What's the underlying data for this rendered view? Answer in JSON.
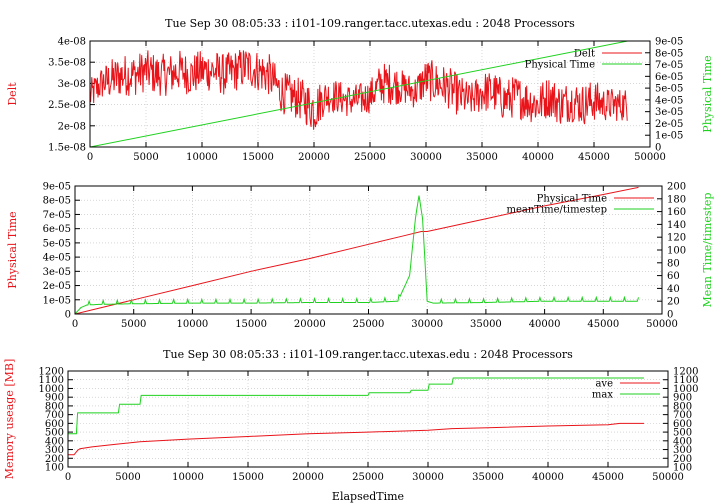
{
  "colors": {
    "red": "#e8141a",
    "green": "#1fd21f",
    "axis": "#000000",
    "grid": "#bfbfbf"
  },
  "chart_data": [
    {
      "type": "line",
      "title": "Tue Sep 30 08:05:33 : i101-109.ranger.tacc.utexas.edu : 2048 Processors",
      "ylabel": "Delt",
      "y2label": "Physical Time",
      "xlim": [
        0,
        50000
      ],
      "ylim": [
        1.5e-08,
        4e-08
      ],
      "y2lim": [
        0,
        9e-05
      ],
      "xticks": [
        "0",
        "5000",
        "10000",
        "15000",
        "20000",
        "25000",
        "30000",
        "35000",
        "40000",
        "45000",
        "50000"
      ],
      "yticks": [
        "1.5e-08",
        "2e-08",
        "2.5e-08",
        "3e-08",
        "3.5e-08",
        "4e-08"
      ],
      "y2ticks": [
        "0",
        "1e-05",
        "2e-05",
        "3e-05",
        "4e-05",
        "5e-05",
        "6e-05",
        "7e-05",
        "8e-05",
        "9e-05"
      ],
      "legend_position": "top-right",
      "grid": true,
      "series": [
        {
          "name": "Delt",
          "axis": "left",
          "color": "#e8141a",
          "x": [
            0,
            1000,
            2000,
            3000,
            4000,
            5000,
            6000,
            7000,
            8000,
            9000,
            10000,
            11000,
            12000,
            13000,
            14000,
            15000,
            16000,
            17000,
            18000,
            19000,
            20000,
            21000,
            22000,
            23000,
            24000,
            25000,
            26000,
            27000,
            28000,
            29000,
            30000,
            31000,
            32000,
            33000,
            34000,
            35000,
            36000,
            37000,
            38000,
            39000,
            40000,
            41000,
            42000,
            43000,
            44000,
            45000,
            46000,
            47000,
            48000
          ],
          "y": [
            2.7e-08,
            3e-08,
            3.1e-08,
            3.2e-08,
            3.2e-08,
            3.3e-08,
            3.2e-08,
            3.2e-08,
            3.3e-08,
            3.2e-08,
            3.3e-08,
            3.3e-08,
            3.2e-08,
            3.3e-08,
            3.4e-08,
            3.3e-08,
            3.2e-08,
            2.8e-08,
            2.7e-08,
            2.6e-08,
            2.4e-08,
            2.7e-08,
            2.7e-08,
            2.6e-08,
            2.6e-08,
            2.7e-08,
            3e-08,
            3e-08,
            2.9e-08,
            2.8e-08,
            3.1e-08,
            3e-08,
            2.9e-08,
            2.7e-08,
            2.6e-08,
            2.8e-08,
            2.8e-08,
            2.6e-08,
            2.7e-08,
            2.6e-08,
            2.5e-08,
            2.7e-08,
            2.5e-08,
            2.6e-08,
            2.5e-08,
            2.6e-08,
            2.5e-08,
            2.5e-08,
            2.5e-08
          ],
          "spread": [
            4e-09,
            4e-09,
            5e-09,
            5e-09,
            5e-09,
            5e-09,
            5e-09,
            5e-09,
            5e-09,
            5e-09,
            5e-09,
            5e-09,
            5e-09,
            5e-09,
            5e-09,
            5e-09,
            5e-09,
            5e-09,
            5e-09,
            5e-09,
            6e-09,
            4e-09,
            4e-09,
            4e-09,
            4e-09,
            4e-09,
            5e-09,
            5e-09,
            4e-09,
            4e-09,
            5e-09,
            5e-09,
            5e-09,
            5e-09,
            4e-09,
            5e-09,
            5e-09,
            5e-09,
            5e-09,
            5e-09,
            5e-09,
            5e-09,
            5e-09,
            5e-09,
            5e-09,
            5e-09,
            4e-09,
            4e-09,
            4e-09
          ]
        },
        {
          "name": "Physical Time",
          "axis": "right",
          "color": "#1fd21f",
          "x": [
            0,
            48000
          ],
          "y": [
            0,
            9e-05
          ]
        }
      ]
    },
    {
      "type": "line",
      "title": "",
      "ylabel": "Physical Time",
      "y2label": "Mean Time/timestep",
      "xlim": [
        0,
        50000
      ],
      "ylim": [
        0,
        9e-05
      ],
      "y2lim": [
        0,
        200
      ],
      "xticks": [
        "0",
        "5000",
        "10000",
        "15000",
        "20000",
        "25000",
        "30000",
        "35000",
        "40000",
        "45000",
        "50000"
      ],
      "yticks": [
        "0",
        "1e-05",
        "2e-05",
        "3e-05",
        "4e-05",
        "5e-05",
        "6e-05",
        "7e-05",
        "8e-05",
        "9e-05"
      ],
      "y2ticks": [
        "0",
        "20",
        "40",
        "60",
        "80",
        "100",
        "120",
        "140",
        "160",
        "180",
        "200"
      ],
      "legend_position": "top-right",
      "grid": true,
      "series": [
        {
          "name": "Physical Time",
          "axis": "left",
          "color": "#e8141a",
          "x": [
            0,
            5000,
            10000,
            15000,
            20000,
            25000,
            28000,
            29500,
            30000,
            35000,
            40000,
            45000,
            48000
          ],
          "y": [
            0,
            1e-05,
            2e-05,
            3e-05,
            3.9e-05,
            4.9e-05,
            5.5e-05,
            5.8e-05,
            5.8e-05,
            6.7e-05,
            7.6e-05,
            8.4e-05,
            8.9e-05
          ]
        },
        {
          "name": "meanTime/timestep",
          "axis": "right",
          "color": "#1fd21f",
          "x": [
            0,
            500,
            1000,
            2000,
            5000,
            10000,
            15000,
            20000,
            25000,
            27500,
            28500,
            29000,
            29300,
            29600,
            30000,
            30500,
            35000,
            40000,
            45000,
            48000
          ],
          "y": [
            0,
            10,
            14,
            15,
            16,
            17,
            17,
            18,
            18,
            20,
            60,
            150,
            185,
            150,
            20,
            17,
            18,
            20,
            20,
            20
          ],
          "spike_interval": 1200
        }
      ]
    },
    {
      "type": "line",
      "title": "Tue Sep 30 08:05:33 : i101-109.ranger.tacc.utexas.edu : 2048 Processors",
      "xlabel": "ElapsedTime",
      "ylabel": "Memory useage [MB]",
      "xlim": [
        0,
        50000
      ],
      "ylim": [
        100,
        1200
      ],
      "y2lim": [
        100,
        1200
      ],
      "xticks": [
        "0",
        "5000",
        "10000",
        "15000",
        "20000",
        "25000",
        "30000",
        "35000",
        "40000",
        "45000",
        "50000"
      ],
      "yticks": [
        "100",
        "200",
        "300",
        "400",
        "500",
        "600",
        "700",
        "800",
        "900",
        "1000",
        "1100",
        "1200"
      ],
      "y2ticks": [
        "100",
        "200",
        "300",
        "400",
        "500",
        "600",
        "700",
        "800",
        "900",
        "1000",
        "1100",
        "1200"
      ],
      "legend_position": "top-right",
      "grid": true,
      "series": [
        {
          "name": "ave",
          "color": "#e8141a",
          "x": [
            0,
            500,
            800,
            1000,
            2000,
            4000,
            6000,
            10000,
            15000,
            20000,
            25000,
            30000,
            32000,
            35000,
            40000,
            45000,
            46000,
            48000
          ],
          "y": [
            240,
            240,
            290,
            310,
            330,
            360,
            390,
            420,
            450,
            480,
            500,
            520,
            540,
            550,
            570,
            585,
            600,
            600
          ]
        },
        {
          "name": "max",
          "color": "#1fd21f",
          "x": [
            0,
            700,
            800,
            4200,
            4300,
            6000,
            6100,
            25000,
            25100,
            28500,
            28600,
            30000,
            30100,
            32000,
            32100,
            48000
          ],
          "y": [
            480,
            480,
            720,
            720,
            820,
            820,
            920,
            920,
            950,
            950,
            980,
            980,
            1050,
            1050,
            1120,
            1120
          ]
        }
      ]
    }
  ]
}
